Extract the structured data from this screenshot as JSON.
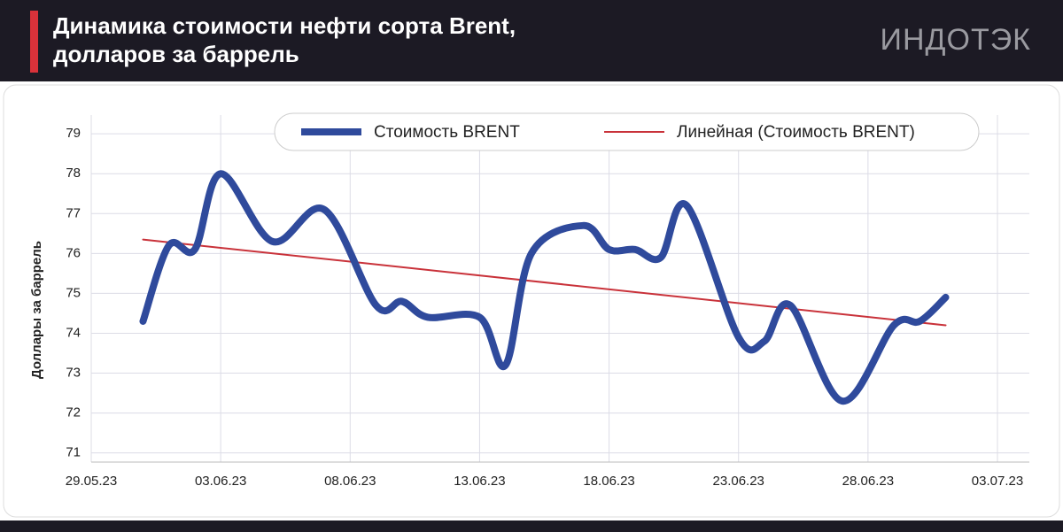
{
  "chart_data": {
    "type": "line",
    "title": "Динамика стоимости нефти сорта Brent, долларов за баррель",
    "brand": "ИНДОТЭК",
    "y_label": "Доллары за баррель",
    "xlim": [
      "29.05.23",
      "03.07.23"
    ],
    "xticks": [
      "29.05.23",
      "03.06.23",
      "08.06.23",
      "13.06.23",
      "18.06.23",
      "23.06.23",
      "28.06.23",
      "03.07.23"
    ],
    "ylim": [
      70.77,
      79.47
    ],
    "yticks": [
      71,
      72,
      73,
      74,
      75,
      76,
      77,
      78,
      79
    ],
    "grid": true,
    "series": [
      {
        "name": "Стоимость BRENT",
        "color": "#2f4a9c",
        "smooth": true,
        "x": [
          "31.05.23",
          "01.06.23",
          "02.06.23",
          "03.06.23",
          "05.06.23",
          "07.06.23",
          "09.06.23",
          "10.06.23",
          "11.06.23",
          "13.06.23",
          "14.06.23",
          "15.06.23",
          "17.06.23",
          "18.06.23",
          "19.06.23",
          "20.06.23",
          "21.06.23",
          "23.06.23",
          "24.06.23",
          "25.06.23",
          "27.06.23",
          "29.06.23",
          "30.06.23",
          "01.07.23"
        ],
        "values": [
          74.3,
          76.2,
          76.1,
          78.0,
          76.3,
          77.1,
          74.7,
          74.8,
          74.4,
          74.4,
          73.2,
          76.0,
          76.7,
          76.1,
          76.1,
          75.9,
          77.2,
          73.9,
          73.8,
          74.7,
          72.3,
          74.2,
          74.3,
          74.9
        ]
      },
      {
        "name": "Линейная (Стоимость BRENT)",
        "color": "#c9323a",
        "smooth": false,
        "x": [
          "31.05.23",
          "01.07.23"
        ],
        "values": [
          76.35,
          74.2
        ]
      }
    ]
  }
}
